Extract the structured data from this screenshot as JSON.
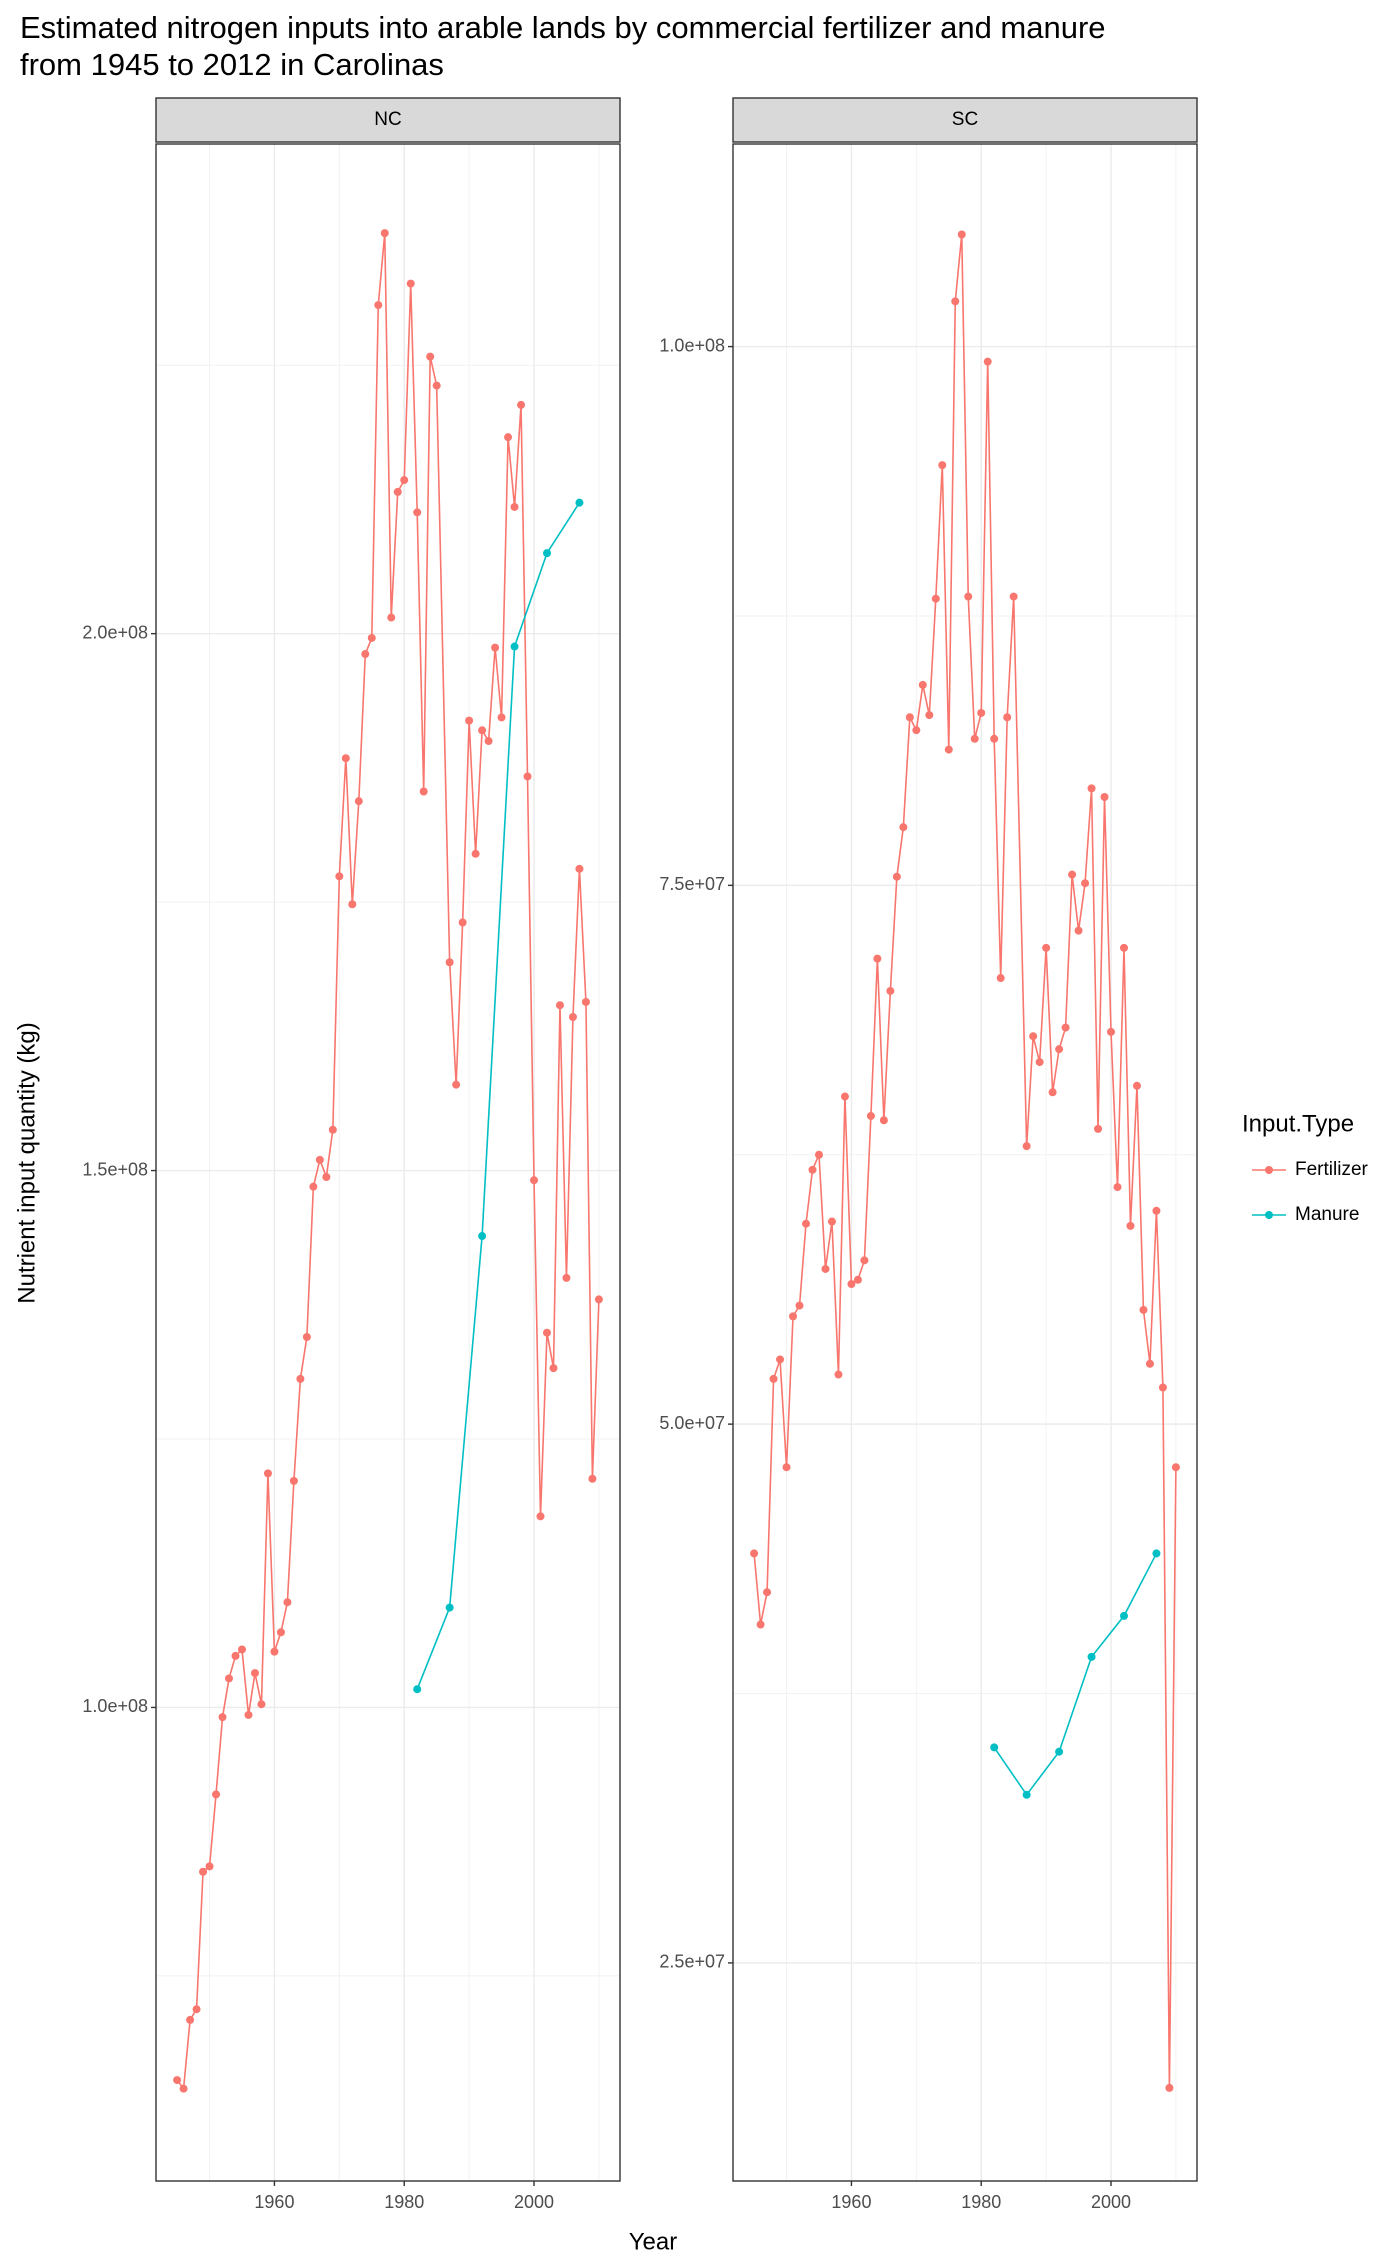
{
  "chart_data": {
    "type": "line",
    "title": "Estimated nitrogen inputs into arable lands by commercial fertilizer and manure",
    "subtitle": "from 1945 to 2012 in Carolinas",
    "xlabel": "Year",
    "ylabel": "Nutrient input quantity (kg)",
    "legend_title": "Input.Type",
    "legend_position": "right",
    "grid": true,
    "xlim": [
      1941.75,
      2013.25
    ],
    "xticks": [
      1960,
      1980,
      2000
    ],
    "panels": [
      {
        "name": "NC",
        "ylim": [
          55900000,
          245600000
        ],
        "yticks": [
          {
            "value": 100000000,
            "label": "1.0e+08"
          },
          {
            "value": 150000000,
            "label": "1.5e+08"
          },
          {
            "value": 200000000,
            "label": "2.0e+08"
          }
        ],
        "series": [
          {
            "name": "Fertilizer",
            "color": "#F8766D",
            "x": [
              1945,
              1946,
              1947,
              1948,
              1949,
              1950,
              1951,
              1952,
              1953,
              1954,
              1955,
              1956,
              1957,
              1958,
              1959,
              1960,
              1961,
              1962,
              1963,
              1964,
              1965,
              1966,
              1967,
              1968,
              1969,
              1970,
              1971,
              1972,
              1973,
              1974,
              1975,
              1976,
              1977,
              1978,
              1979,
              1980,
              1981,
              1982,
              1983,
              1984,
              1985,
              1987,
              1988,
              1989,
              1990,
              1991,
              1992,
              1993,
              1994,
              1995,
              1996,
              1997,
              1998,
              1999,
              2000,
              2001,
              2002,
              2003,
              2004,
              2005,
              2006,
              2007,
              2008,
              2009,
              2010
            ],
            "values": [
              65300000,
              64500000,
              70900000,
              71900000,
              84700000,
              85200000,
              91900000,
              99100000,
              102700000,
              104800000,
              105400000,
              99300000,
              103200000,
              100300000,
              121800000,
              105200000,
              107000000,
              109800000,
              121100000,
              130600000,
              134500000,
              148500000,
              151000000,
              149400000,
              153800000,
              177400000,
              188400000,
              174800000,
              184400000,
              198100000,
              199600000,
              230600000,
              237300000,
              201500000,
              213200000,
              214300000,
              232600000,
              211300000,
              185300000,
              225800000,
              223100000,
              169400000,
              158000000,
              173100000,
              191900000,
              179500000,
              191000000,
              190000000,
              198700000,
              192200000,
              218300000,
              211800000,
              221300000,
              186700000,
              149100000,
              117800000,
              134900000,
              131600000,
              165400000,
              140000000,
              164300000,
              178100000,
              165700000,
              121300000,
              138000000
            ]
          },
          {
            "name": "Manure",
            "color": "#00BFC4",
            "x": [
              1982,
              1987,
              1992,
              1997,
              2002,
              2007
            ],
            "values": [
              101700000,
              109300000,
              143900000,
              198800000,
              207500000,
              212200000
            ]
          }
        ]
      },
      {
        "name": "SC",
        "ylim": [
          14880000,
          109400000
        ],
        "yticks": [
          {
            "value": 25000000,
            "label": "2.5e+07"
          },
          {
            "value": 50000000,
            "label": "5.0e+07"
          },
          {
            "value": 75000000,
            "label": "7.5e+07"
          },
          {
            "value": 100000000,
            "label": "1.0e+08"
          }
        ],
        "series": [
          {
            "name": "Fertilizer",
            "color": "#F8766D",
            "x": [
              1945,
              1946,
              1947,
              1948,
              1949,
              1950,
              1951,
              1952,
              1953,
              1954,
              1955,
              1956,
              1957,
              1958,
              1959,
              1960,
              1961,
              1962,
              1963,
              1964,
              1965,
              1966,
              1967,
              1968,
              1969,
              1970,
              1971,
              1972,
              1973,
              1974,
              1975,
              1976,
              1977,
              1978,
              1979,
              1980,
              1981,
              1982,
              1983,
              1984,
              1985,
              1987,
              1988,
              1989,
              1990,
              1991,
              1992,
              1993,
              1994,
              1995,
              1996,
              1997,
              1998,
              1999,
              2000,
              2001,
              2002,
              2003,
              2004,
              2005,
              2006,
              2007,
              2008,
              2009,
              2010
            ],
            "values": [
              44000000,
              40700000,
              42200000,
              52100000,
              53000000,
              48000000,
              55000000,
              55500000,
              59300000,
              61800000,
              62500000,
              57200000,
              59400000,
              52300000,
              65200000,
              56500000,
              56700000,
              57600000,
              64300000,
              71600000,
              64100000,
              70100000,
              75400000,
              77700000,
              82800000,
              82200000,
              84300000,
              82900000,
              88300000,
              94500000,
              81300000,
              102100000,
              105200000,
              88400000,
              81800000,
              83000000,
              99300000,
              81800000,
              70700000,
              82800000,
              88400000,
              62900000,
              68000000,
              66800000,
              72100000,
              65400000,
              67400000,
              68400000,
              75500000,
              72900000,
              75100000,
              79500000,
              63700000,
              79100000,
              68200000,
              61000000,
              72100000,
              59200000,
              65700000,
              55300000,
              52800000,
              59900000,
              51700000,
              19200000,
              48000000
            ]
          },
          {
            "name": "Manure",
            "color": "#00BFC4",
            "x": [
              1982,
              1987,
              1992,
              1997,
              2002,
              2007
            ],
            "values": [
              35000000,
              32800000,
              34800000,
              39200000,
              41100000,
              44000000
            ]
          }
        ]
      }
    ]
  }
}
